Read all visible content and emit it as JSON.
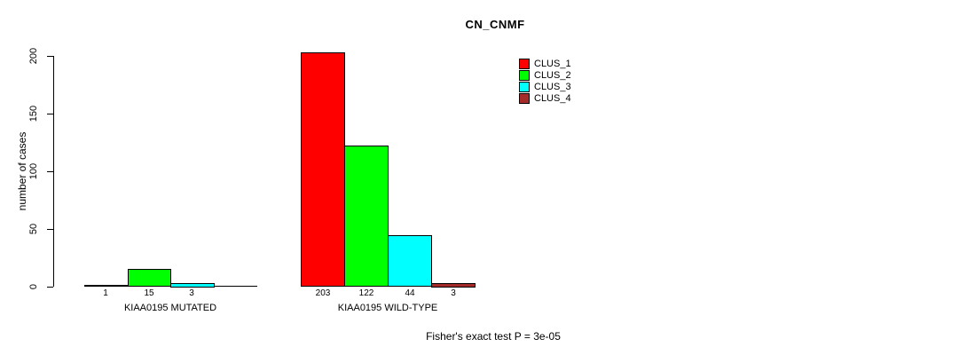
{
  "chart_data": {
    "type": "bar",
    "title": "CN_CNMF",
    "ylabel": "number of cases",
    "xlabel": "",
    "ylim": [
      0,
      200
    ],
    "yticks": [
      0,
      50,
      100,
      150,
      200
    ],
    "grid": false,
    "legend_position": "top-right-inside",
    "categories": [
      "KIAA0195 MUTATED",
      "KIAA0195 WILD-TYPE"
    ],
    "series": [
      {
        "name": "CLUS_1",
        "color": "#FF0000",
        "values": [
          1,
          203
        ]
      },
      {
        "name": "CLUS_2",
        "color": "#00FF00",
        "values": [
          15,
          122
        ]
      },
      {
        "name": "CLUS_3",
        "color": "#00FFFF",
        "values": [
          3,
          44
        ]
      },
      {
        "name": "CLUS_4",
        "color": "#A52A2A",
        "values": [
          0,
          3
        ]
      }
    ],
    "bar_value_labels": [
      [
        "1",
        "15",
        "3",
        ""
      ],
      [
        "203",
        "122",
        "44",
        "3"
      ]
    ],
    "footnote": "Fisher's exact test P = 3e-05",
    "background_color": "#FFFFFF",
    "axis_color": "#000000"
  }
}
